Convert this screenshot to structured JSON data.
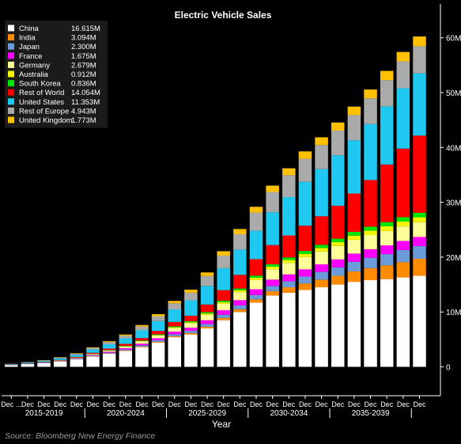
{
  "chart_data": {
    "type": "bar",
    "stacked": true,
    "title": "Electric Vehicle Sales",
    "xlabel": "Year",
    "ylabel": "",
    "ylim": [
      -5,
      66
    ],
    "y_ticks": [
      0,
      10,
      20,
      30,
      40,
      50,
      60
    ],
    "y_tick_labels": [
      "0",
      "10M",
      "20M",
      "30M",
      "40M",
      "50M",
      "60M"
    ],
    "y_axis_position": "right",
    "grid": false,
    "legend_position": "top-left",
    "categories": [
      "Dec 2015",
      "Dec 2016",
      "Dec 2017",
      "Dec 2018",
      "Dec 2019",
      "Dec 2020",
      "Dec 2021",
      "Dec 2022",
      "Dec 2023",
      "Dec 2024",
      "Dec 2025",
      "Dec 2026",
      "Dec 2027",
      "Dec 2028",
      "Dec 2029",
      "Dec 2030",
      "Dec 2031",
      "Dec 2032",
      "Dec 2033",
      "Dec 2034",
      "Dec 2035",
      "Dec 2036",
      "Dec 2037",
      "Dec 2038",
      "Dec 2039",
      "Dec 2040"
    ],
    "tick_labels": [
      "Dec ...",
      "Dec",
      "Dec",
      "Dec",
      "Dec",
      "Dec",
      "Dec",
      "Dec",
      "Dec",
      "Dec",
      "Dec",
      "Dec",
      "Dec",
      "Dec",
      "Dec",
      "Dec",
      "Dec",
      "Dec",
      "Dec",
      "Dec",
      "Dec",
      "Dec",
      "Dec",
      "Dec",
      "Dec",
      "Dec"
    ],
    "groups": [
      {
        "label": "2015-2019",
        "start": 0,
        "end": 4
      },
      {
        "label": "2020-2024",
        "start": 5,
        "end": 9
      },
      {
        "label": "2025-2029",
        "start": 10,
        "end": 14
      },
      {
        "label": "2030-2034",
        "start": 15,
        "end": 19
      },
      {
        "label": "2035-2039",
        "start": 20,
        "end": 24
      }
    ],
    "series": [
      {
        "name": "China",
        "legend_value": "16.615M",
        "color": "#ffffff",
        "values": [
          0.3,
          0.5,
          0.7,
          1.0,
          1.4,
          1.9,
          2.4,
          2.9,
          3.6,
          4.4,
          5.4,
          5.9,
          7.0,
          8.5,
          10.0,
          11.7,
          13.0,
          13.5,
          14.0,
          14.5,
          15.0,
          15.5,
          15.8,
          16.0,
          16.3,
          16.6
        ]
      },
      {
        "name": "India",
        "legend_value": "3.094M",
        "color": "#ff8c00",
        "values": [
          0.0,
          0.0,
          0.0,
          0.0,
          0.0,
          0.05,
          0.05,
          0.1,
          0.1,
          0.15,
          0.2,
          0.25,
          0.3,
          0.4,
          0.5,
          0.6,
          0.8,
          1.0,
          1.2,
          1.4,
          1.6,
          1.9,
          2.2,
          2.5,
          2.8,
          3.1
        ]
      },
      {
        "name": "Japan",
        "legend_value": "2.300M",
        "color": "#6b9bd8",
        "values": [
          0.02,
          0.03,
          0.04,
          0.05,
          0.07,
          0.1,
          0.13,
          0.17,
          0.22,
          0.28,
          0.35,
          0.42,
          0.5,
          0.6,
          0.7,
          0.8,
          0.95,
          1.1,
          1.25,
          1.4,
          1.55,
          1.75,
          1.9,
          2.05,
          2.2,
          2.3
        ]
      },
      {
        "name": "France",
        "legend_value": "1.675M",
        "color": "#ff00ff",
        "values": [
          0.02,
          0.03,
          0.04,
          0.05,
          0.07,
          0.12,
          0.18,
          0.24,
          0.3,
          0.38,
          0.48,
          0.58,
          0.7,
          0.82,
          0.95,
          1.05,
          1.15,
          1.25,
          1.32,
          1.38,
          1.44,
          1.5,
          1.55,
          1.6,
          1.65,
          1.675
        ]
      },
      {
        "name": "Germany",
        "legend_value": "2.679M",
        "color": "#ffff99",
        "values": [
          0.02,
          0.03,
          0.04,
          0.06,
          0.1,
          0.15,
          0.22,
          0.3,
          0.4,
          0.5,
          0.65,
          0.8,
          1.0,
          1.2,
          1.45,
          1.7,
          1.9,
          2.1,
          2.25,
          2.35,
          2.45,
          2.52,
          2.58,
          2.62,
          2.65,
          2.679
        ]
      },
      {
        "name": "Australia",
        "legend_value": "0.912M",
        "color": "#f5f500",
        "values": [
          0.0,
          0.0,
          0.0,
          0.0,
          0.01,
          0.02,
          0.03,
          0.05,
          0.07,
          0.1,
          0.13,
          0.17,
          0.22,
          0.28,
          0.34,
          0.4,
          0.46,
          0.52,
          0.58,
          0.64,
          0.7,
          0.75,
          0.8,
          0.85,
          0.88,
          0.912
        ]
      },
      {
        "name": "South Korea",
        "legend_value": "0.836M",
        "color": "#00e600",
        "values": [
          0.0,
          0.0,
          0.01,
          0.02,
          0.03,
          0.04,
          0.06,
          0.08,
          0.1,
          0.13,
          0.16,
          0.2,
          0.24,
          0.28,
          0.33,
          0.38,
          0.43,
          0.48,
          0.53,
          0.58,
          0.63,
          0.68,
          0.73,
          0.77,
          0.81,
          0.836
        ]
      },
      {
        "name": "Rest of World",
        "legend_value": "14.054M",
        "color": "#ff0000",
        "values": [
          0.02,
          0.03,
          0.05,
          0.08,
          0.12,
          0.18,
          0.25,
          0.35,
          0.45,
          0.6,
          0.8,
          1.0,
          1.4,
          1.9,
          2.5,
          3.0,
          3.5,
          4.0,
          4.6,
          5.2,
          6.0,
          7.0,
          8.5,
          10.5,
          12.5,
          14.054
        ]
      },
      {
        "name": "United States",
        "legend_value": "11.353M",
        "color": "#1ec8f0",
        "values": [
          0.1,
          0.15,
          0.2,
          0.3,
          0.4,
          0.6,
          0.8,
          1.0,
          1.4,
          1.8,
          2.3,
          2.8,
          3.4,
          4.0,
          4.6,
          5.2,
          6.0,
          7.0,
          8.0,
          8.6,
          9.2,
          9.7,
          10.2,
          10.6,
          11.0,
          11.353
        ]
      },
      {
        "name": "Rest of Europe",
        "legend_value": "4.943M",
        "color": "#aaaaaa",
        "values": [
          0.05,
          0.07,
          0.1,
          0.15,
          0.2,
          0.3,
          0.4,
          0.5,
          0.7,
          0.9,
          1.1,
          1.4,
          1.8,
          2.3,
          2.8,
          3.3,
          3.7,
          4.0,
          4.2,
          4.4,
          4.5,
          4.6,
          4.7,
          4.8,
          4.9,
          4.943
        ]
      },
      {
        "name": "United Kingdom",
        "legend_value": "1.773M",
        "color": "#ffc000",
        "values": [
          0.02,
          0.03,
          0.04,
          0.06,
          0.08,
          0.1,
          0.15,
          0.2,
          0.28,
          0.36,
          0.45,
          0.55,
          0.65,
          0.8,
          0.95,
          1.05,
          1.15,
          1.25,
          1.35,
          1.4,
          1.48,
          1.55,
          1.6,
          1.67,
          1.72,
          1.773
        ]
      }
    ]
  },
  "source": "Source: Bloomberg New Energy Finance"
}
